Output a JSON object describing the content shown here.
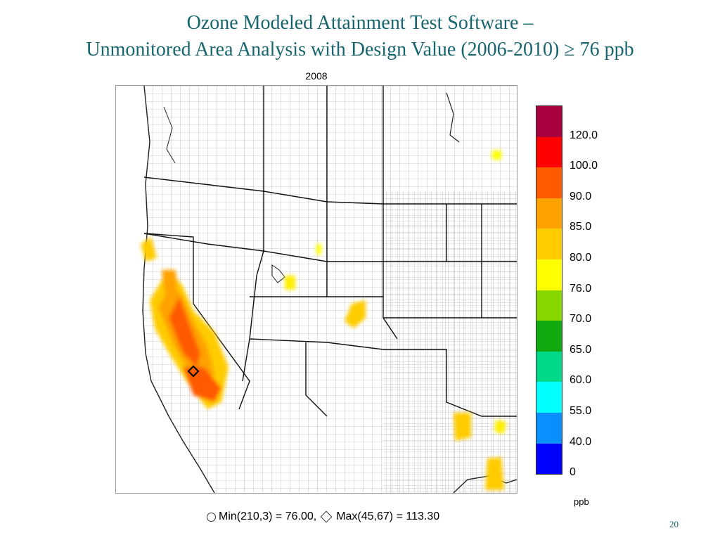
{
  "slide": {
    "title_line1": "Ozone Modeled Attainment Test Software –",
    "title_line2": "Unmonitored Area Analysis with Design Value (2006-2010) ≥ 76 ppb",
    "page_number": "20"
  },
  "map": {
    "year_label": "2008",
    "max_marker_icon": "diamond-icon"
  },
  "colorbar": {
    "unit": "ppb",
    "bins": [
      {
        "color": "#a8003f"
      },
      {
        "color": "#ff0000"
      },
      {
        "color": "#ff5a00"
      },
      {
        "color": "#ffa200"
      },
      {
        "color": "#ffcc00"
      },
      {
        "color": "#ffff00"
      },
      {
        "color": "#88d800"
      },
      {
        "color": "#10aa10"
      },
      {
        "color": "#00d98a"
      },
      {
        "color": "#00ffff"
      },
      {
        "color": "#0a8fff"
      },
      {
        "color": "#0000ff"
      }
    ],
    "labels": [
      "120.0",
      "100.0",
      "90.0",
      "85.0",
      "80.0",
      "76.0",
      "70.0",
      "65.0",
      "60.0",
      "55.0",
      "40.0",
      "0"
    ]
  },
  "stats": {
    "min_icon": "circle-icon",
    "min_text": "Min(210,3) = 76.00,",
    "max_icon": "diamond-icon",
    "max_text": "Max(45,67) = 113.30"
  }
}
